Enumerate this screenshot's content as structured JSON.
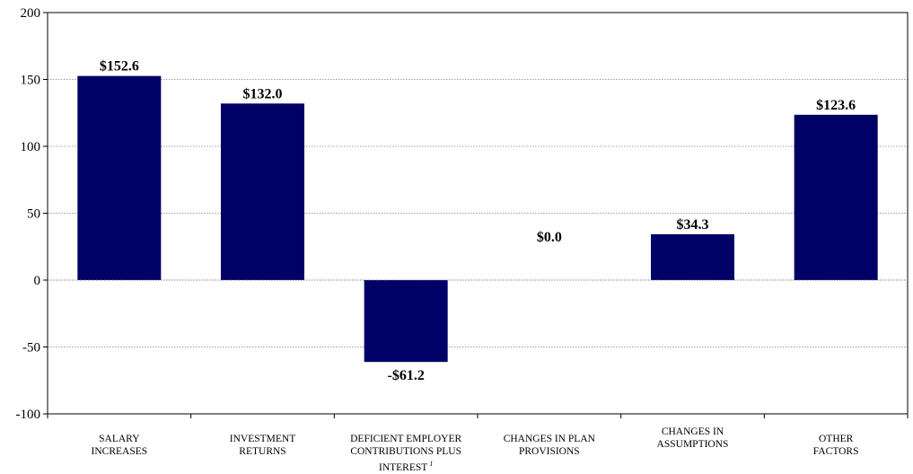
{
  "chart_data": {
    "type": "bar",
    "categories": [
      [
        "SALARY",
        "INCREASES"
      ],
      [
        "INVESTMENT",
        "RETURNS"
      ],
      [
        "DEFICIENT EMPLOYER",
        "CONTRIBUTIONS PLUS",
        "INTEREST"
      ],
      [
        "CHANGES IN PLAN",
        "PROVISIONS"
      ],
      [
        "CHANGES IN",
        "ASSUMPTIONS"
      ],
      [
        "OTHER",
        "FACTORS"
      ]
    ],
    "category_footnotes": [
      "",
      "",
      "1",
      "",
      "",
      ""
    ],
    "values": [
      152.6,
      132.0,
      -61.2,
      0.0,
      34.3,
      123.6
    ],
    "data_labels": [
      "$152.6",
      "$132.0",
      "-$61.2",
      "$0.0",
      "$34.3",
      "$123.6"
    ],
    "ylim": [
      -100,
      200
    ],
    "yticks": [
      200,
      150,
      100,
      50,
      0,
      -50,
      -100
    ],
    "ytick_labels": [
      "200",
      "150",
      "100",
      "50",
      "0",
      "-50",
      "-100"
    ],
    "grid": true,
    "bar_color": "#000066",
    "title": "",
    "xlabel": "",
    "ylabel": ""
  }
}
